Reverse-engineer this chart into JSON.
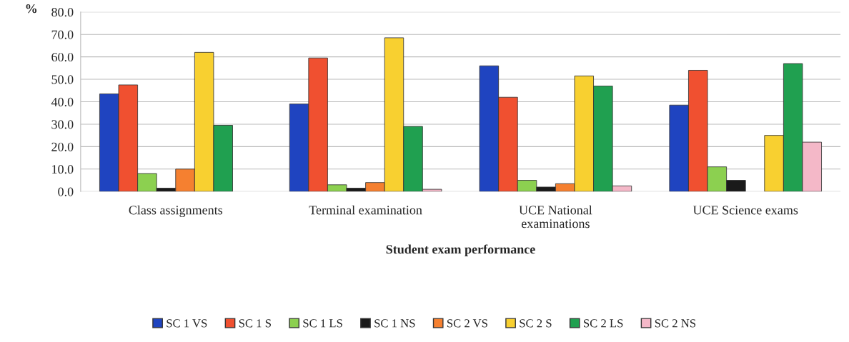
{
  "chart_data": {
    "type": "bar",
    "ylabel": "%",
    "xlabel": "Student exam performance",
    "categories": [
      "Class assignments",
      "Terminal examination",
      "UCE National\nexaminations",
      "UCE Science exams"
    ],
    "series": [
      {
        "name": "SC 1 VS",
        "color": "#1f44c0",
        "values": [
          43.5,
          39,
          56,
          38.5
        ]
      },
      {
        "name": "SC 1 S",
        "color": "#f05030",
        "values": [
          47.5,
          59.5,
          42,
          54
        ]
      },
      {
        "name": "SC 1 LS",
        "color": "#8cd050",
        "values": [
          8,
          3,
          5,
          11
        ]
      },
      {
        "name": "SC 1 NS",
        "color": "#1a1a1a",
        "values": [
          1.5,
          1.5,
          2,
          5
        ]
      },
      {
        "name": "SC 2 VS",
        "color": "#f58030",
        "values": [
          10,
          4,
          3.5,
          null
        ]
      },
      {
        "name": "SC 2 S",
        "color": "#f8d030",
        "values": [
          62,
          68.5,
          51.5,
          25
        ]
      },
      {
        "name": "SC 2 LS",
        "color": "#20a050",
        "values": [
          29.5,
          29,
          47,
          57
        ]
      },
      {
        "name": "SC 2 NS",
        "color": "#f4b8c8",
        "values": [
          null,
          1,
          2.5,
          22
        ]
      }
    ],
    "ylim": [
      0,
      80
    ],
    "yticks": [
      {
        "value": 0,
        "label": "0.0"
      },
      {
        "value": 10,
        "label": "10.0"
      },
      {
        "value": 20,
        "label": "20.0"
      },
      {
        "value": 30,
        "label": "30.0"
      },
      {
        "value": 40,
        "label": "40.0"
      },
      {
        "value": 50,
        "label": "50.0"
      },
      {
        "value": 60,
        "label": "60.0"
      },
      {
        "value": 70,
        "label": "70.0"
      },
      {
        "value": 80,
        "label": "80.0"
      }
    ],
    "grid": "y",
    "legend": "bottom"
  }
}
